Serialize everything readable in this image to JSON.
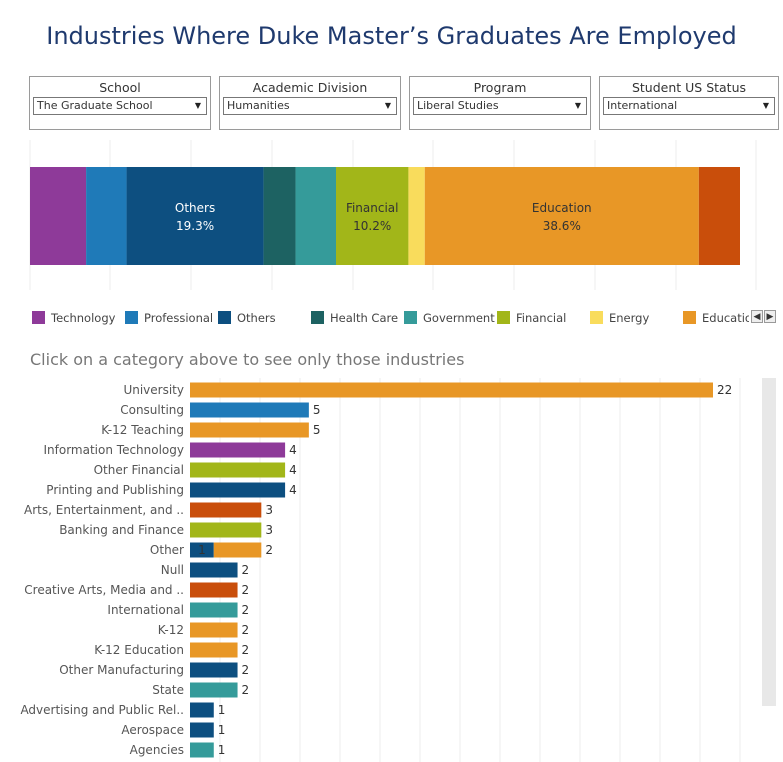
{
  "title": "Industries Where Duke Master’s Graduates Are Employed",
  "filters": [
    {
      "label": "School",
      "value": "The Graduate School"
    },
    {
      "label": "Academic Division",
      "value": "Humanities"
    },
    {
      "label": "Program",
      "value": "Liberal Studies"
    },
    {
      "label": "Student US Status",
      "value": "International"
    }
  ],
  "legend": [
    {
      "name": "Technology",
      "color": "#8e3a99"
    },
    {
      "name": "Professional",
      "color": "#1f7ab8"
    },
    {
      "name": "Others",
      "color": "#0d4f80"
    },
    {
      "name": "Health Care",
      "color": "#1d6262"
    },
    {
      "name": "Government",
      "color": "#359b9a"
    },
    {
      "name": "Financial",
      "color": "#a2b619"
    },
    {
      "name": "Energy",
      "color": "#f9dc5c"
    },
    {
      "name": "Education",
      "color": "#e89726"
    }
  ],
  "instruction": "Click on a category above to see only those industries",
  "chart_data": [
    {
      "type": "bar",
      "orientation": "horizontal-stacked-100",
      "segments": [
        {
          "category": "Technology",
          "share": 7.9,
          "color": "#8e3a99"
        },
        {
          "category": "Professional",
          "share": 5.7,
          "color": "#1f7ab8"
        },
        {
          "category": "Others",
          "share": 19.3,
          "color": "#0d4f80",
          "label_share": "19.3%"
        },
        {
          "category": "Health Care",
          "share": 4.5,
          "color": "#1d6262"
        },
        {
          "category": "Government",
          "share": 5.7,
          "color": "#359b9a"
        },
        {
          "category": "Financial",
          "share": 10.2,
          "color": "#a2b619",
          "label_share": "10.2%"
        },
        {
          "category": "Energy",
          "share": 2.3,
          "color": "#f9dc5c"
        },
        {
          "category": "Education",
          "share": 38.6,
          "color": "#e89726",
          "label_share": "38.6%"
        },
        {
          "category": "",
          "share": 5.8,
          "color": "#c94e0b"
        }
      ],
      "xlim": [
        0,
        100
      ],
      "grid": true
    },
    {
      "type": "bar",
      "orientation": "horizontal",
      "xlim": [
        0,
        22
      ],
      "grid": true,
      "rows": [
        {
          "category": "University",
          "parts": [
            {
              "value": 22,
              "color": "#e89726"
            }
          ]
        },
        {
          "category": "Consulting",
          "parts": [
            {
              "value": 5,
              "color": "#1f7ab8"
            }
          ]
        },
        {
          "category": "K-12 Teaching",
          "parts": [
            {
              "value": 5,
              "color": "#e89726"
            }
          ]
        },
        {
          "category": "Information Technology",
          "parts": [
            {
              "value": 4,
              "color": "#8e3a99"
            }
          ]
        },
        {
          "category": "Other Financial",
          "parts": [
            {
              "value": 4,
              "color": "#a2b619"
            }
          ]
        },
        {
          "category": "Printing and Publishing",
          "parts": [
            {
              "value": 4,
              "color": "#0d4f80"
            }
          ]
        },
        {
          "category": "Arts, Entertainment, and ..",
          "parts": [
            {
              "value": 3,
              "color": "#c94e0b"
            }
          ]
        },
        {
          "category": "Banking and Finance",
          "parts": [
            {
              "value": 3,
              "color": "#a2b619"
            }
          ]
        },
        {
          "category": "Other",
          "parts": [
            {
              "value": 1,
              "color": "#0d4f80"
            },
            {
              "value": 2,
              "color": "#e89726"
            }
          ]
        },
        {
          "category": "Null",
          "parts": [
            {
              "value": 2,
              "color": "#0d4f80"
            }
          ]
        },
        {
          "category": "Creative Arts, Media and ..",
          "parts": [
            {
              "value": 2,
              "color": "#c94e0b"
            }
          ]
        },
        {
          "category": "International",
          "parts": [
            {
              "value": 2,
              "color": "#359b9a"
            }
          ]
        },
        {
          "category": "K-12",
          "parts": [
            {
              "value": 2,
              "color": "#e89726"
            }
          ]
        },
        {
          "category": "K-12 Education",
          "parts": [
            {
              "value": 2,
              "color": "#e89726"
            }
          ]
        },
        {
          "category": "Other Manufacturing",
          "parts": [
            {
              "value": 2,
              "color": "#0d4f80"
            }
          ]
        },
        {
          "category": "State",
          "parts": [
            {
              "value": 2,
              "color": "#359b9a"
            }
          ]
        },
        {
          "category": "Advertising and Public Rel..",
          "parts": [
            {
              "value": 1,
              "color": "#0d4f80"
            }
          ]
        },
        {
          "category": "Aerospace",
          "parts": [
            {
              "value": 1,
              "color": "#0d4f80"
            }
          ]
        },
        {
          "category": "Agencies",
          "parts": [
            {
              "value": 1,
              "color": "#359b9a"
            }
          ]
        }
      ]
    }
  ]
}
